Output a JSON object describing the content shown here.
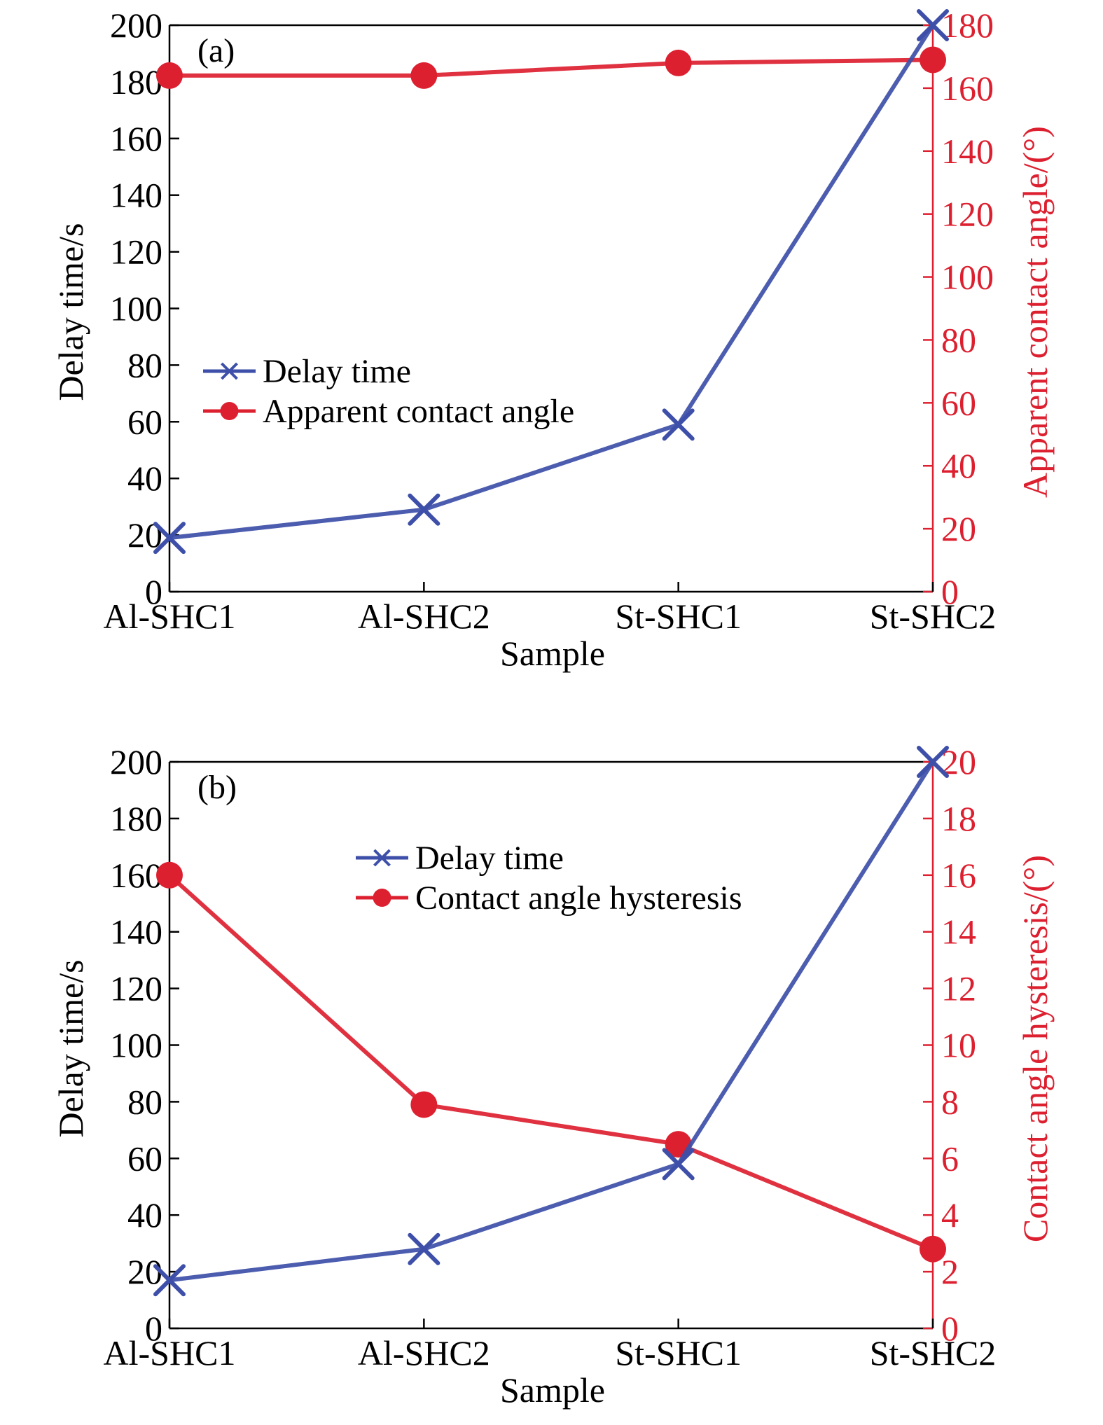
{
  "chart_data": [
    {
      "type": "line",
      "panel_label": "(a)",
      "categories": [
        "Al-SHC1",
        "Al-SHC2",
        "St-SHC1",
        "St-SHC2"
      ],
      "xlabel": "Sample",
      "left_axis": {
        "label": "Delay time/s",
        "range": [
          0,
          200
        ],
        "ticks": [
          0,
          20,
          40,
          60,
          80,
          100,
          120,
          140,
          160,
          180,
          200
        ]
      },
      "right_axis": {
        "label": "Apparent contact angle/(°)",
        "range": [
          0,
          180
        ],
        "ticks": [
          0,
          20,
          40,
          60,
          80,
          100,
          120,
          140,
          160,
          180
        ]
      },
      "series": [
        {
          "name": "Delay time",
          "axis": "left",
          "marker": "x",
          "color": "#3d4fa8",
          "values": [
            19,
            29,
            59,
            200
          ]
        },
        {
          "name": "Apparent contact angle",
          "axis": "right",
          "marker": "circle",
          "color": "#dd2030",
          "values": [
            164,
            164,
            168,
            169
          ]
        }
      ],
      "legend_position": "center-left"
    },
    {
      "type": "line",
      "panel_label": "(b)",
      "categories": [
        "Al-SHC1",
        "Al-SHC2",
        "St-SHC1",
        "St-SHC2"
      ],
      "xlabel": "Sample",
      "left_axis": {
        "label": "Delay time/s",
        "range": [
          0,
          200
        ],
        "ticks": [
          0,
          20,
          40,
          60,
          80,
          100,
          120,
          140,
          160,
          180,
          200
        ]
      },
      "right_axis": {
        "label": "Contact angle hysteresis/(°)",
        "range": [
          0,
          20
        ],
        "ticks": [
          0,
          2,
          4,
          6,
          8,
          10,
          12,
          14,
          16,
          18,
          20
        ]
      },
      "series": [
        {
          "name": "Delay time",
          "axis": "left",
          "marker": "x",
          "color": "#3d4fa8",
          "values": [
            17,
            28,
            58,
            200
          ]
        },
        {
          "name": "Contact angle hysteresis",
          "axis": "right",
          "marker": "circle",
          "color": "#dd2030",
          "values": [
            16,
            7.9,
            6.5,
            2.8
          ]
        }
      ],
      "legend_position": "top-center"
    }
  ],
  "colors": {
    "axis": "#000000",
    "right_axis": "#dd2030"
  }
}
